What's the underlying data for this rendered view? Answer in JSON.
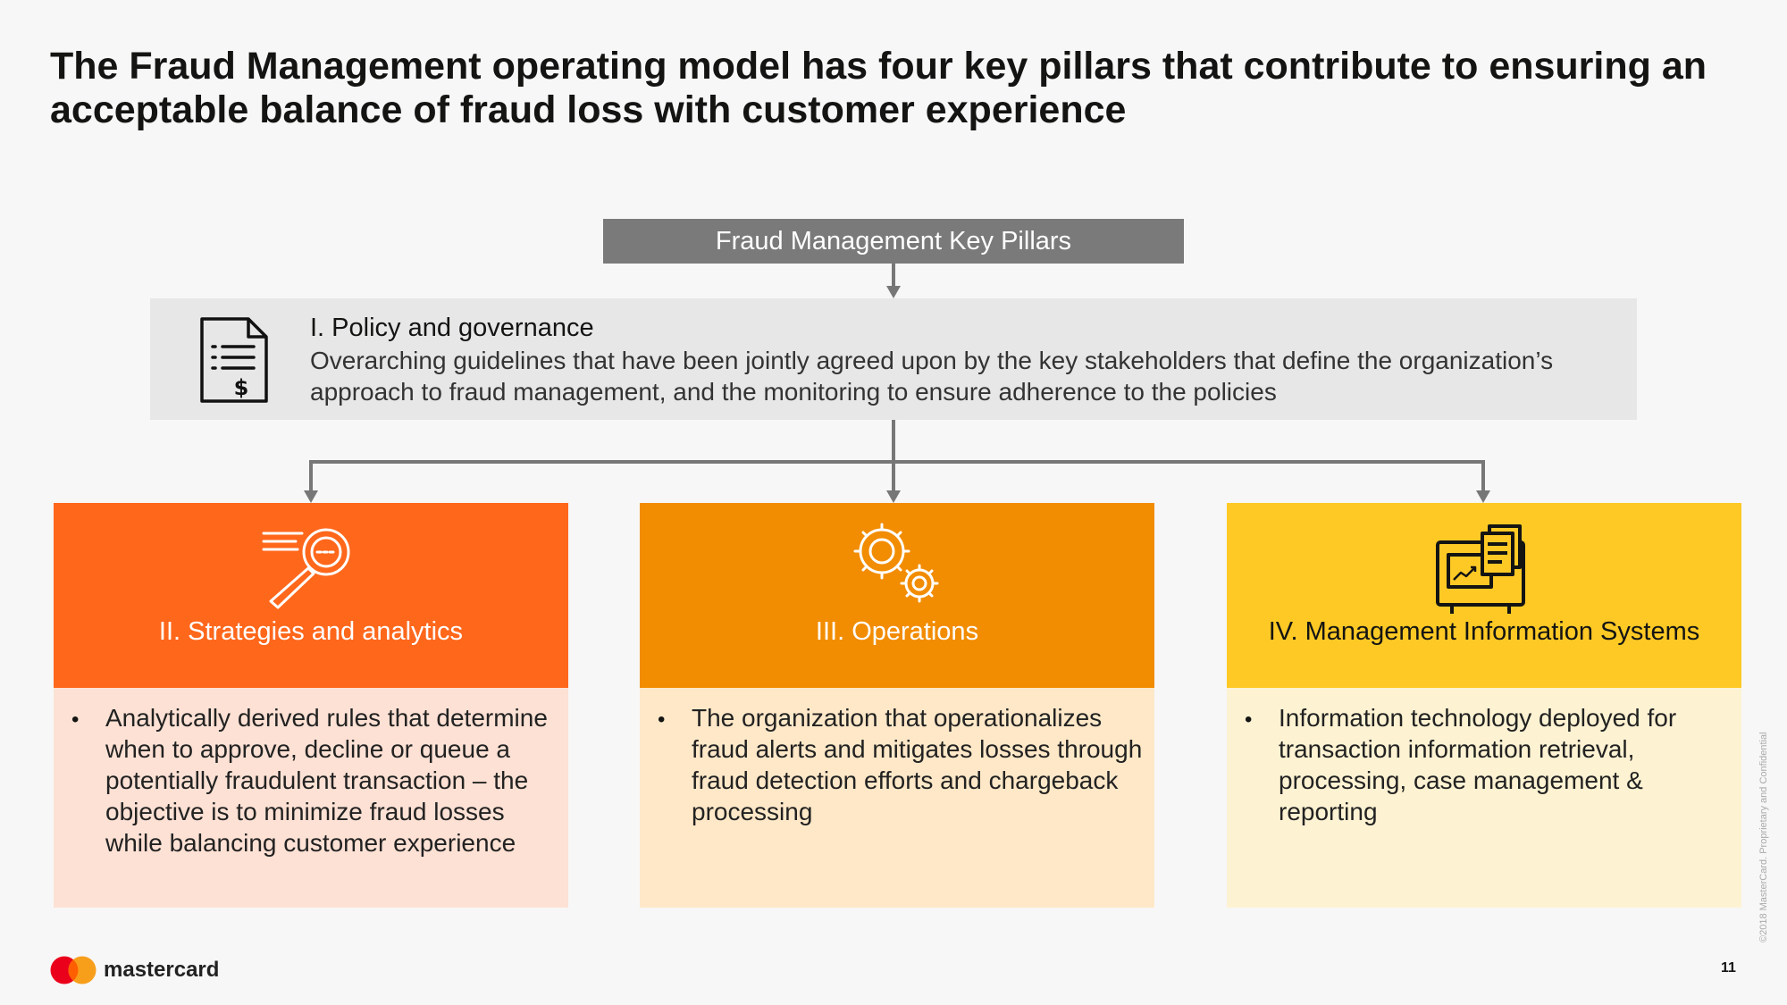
{
  "slide": {
    "title": "The Fraud Management operating model has four key pillars that contribute to ensuring an acceptable balance of fraud loss with customer experience",
    "key_pillars_label": "Fraud Management Key Pillars"
  },
  "policy": {
    "icon": "document-dollar-icon",
    "title": "I. Policy and governance",
    "description": "Overarching guidelines that have been jointly agreed upon by the key stakeholders that define the organization’s approach to fraud management, and the monitoring to ensure adherence to the policies"
  },
  "pillars": [
    {
      "icon": "magnifier-icon",
      "title": "II. Strategies and analytics",
      "bullet": "•",
      "text": "Analytically derived rules that determine when to approve, decline or queue a potentially fraudulent transaction – the objective is to minimize fraud losses while balancing customer experience",
      "header_color": "#ff671b",
      "body_color": "#fde1d4"
    },
    {
      "icon": "gears-icon",
      "title": "III. Operations",
      "bullet": "•",
      "text": "The organization that operationalizes fraud alerts and mitigates losses through fraud detection efforts and chargeback processing",
      "header_color": "#f28c00",
      "body_color": "#ffe8c8"
    },
    {
      "icon": "monitor-report-icon",
      "title": "IV. Management Information Systems",
      "bullet": "•",
      "text": "Information technology deployed for transaction information retrieval, processing, case management & reporting",
      "header_color": "#fec925",
      "body_color": "#fdf2d2"
    }
  ],
  "footer": {
    "brand": "mastercard",
    "logo_colors": [
      "#eb001b",
      "#f79e1b"
    ],
    "page_number": "11",
    "copyright": "©2018 MasterCard. Proprietary and Confidential"
  }
}
